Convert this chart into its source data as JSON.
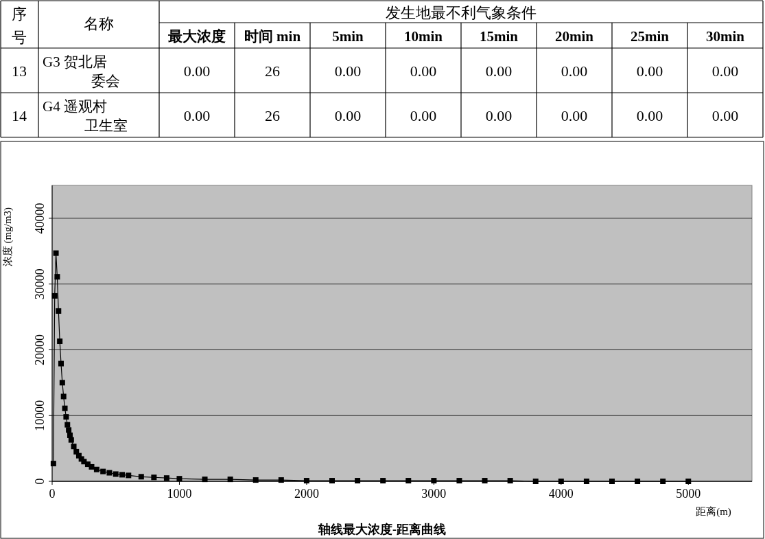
{
  "chart_data": [
    {
      "type": "heatmap",
      "title": "发生地最不利气象条件",
      "annotations": [
        "序号",
        "名称",
        "13",
        "14"
      ],
      "categories": [
        "最大浓度",
        "时间 min",
        "5min",
        "10min",
        "15min",
        "20min",
        "25min",
        "30min"
      ],
      "y_categories": [
        "G3 贺北居委会",
        "G4 遥观村卫生室"
      ],
      "cells": [
        [
          0,
          26,
          0,
          0,
          0,
          0,
          0,
          0
        ],
        [
          0,
          26,
          0,
          0,
          0,
          0,
          0,
          0
        ]
      ],
      "cell_labels": [
        [
          "0.00",
          "26",
          "0.00",
          "0.00",
          "0.00",
          "0.00",
          "0.00",
          "0.00"
        ],
        [
          "0.00",
          "26",
          "0.00",
          "0.00",
          "0.00",
          "0.00",
          "0.00",
          "0.00"
        ]
      ]
    },
    {
      "type": "line",
      "title": "轴线最大浓度-距离曲线",
      "xlabel": "距离(m)",
      "ylabel": "浓度 (mg/m3)",
      "xlim": [
        0,
        5500
      ],
      "xticks": [
        0,
        1000,
        2000,
        3000,
        4000,
        5000
      ],
      "ylim": [
        0,
        45000
      ],
      "yticks": [
        0,
        10000,
        20000,
        30000,
        40000
      ],
      "grid": "y",
      "marker": "square",
      "series": [
        {
          "color": "#000000",
          "x": [
            10,
            20,
            30,
            40,
            50,
            60,
            70,
            80,
            90,
            100,
            110,
            120,
            130,
            140,
            150,
            170,
            190,
            210,
            230,
            250,
            280,
            310,
            350,
            400,
            450,
            500,
            550,
            600,
            700,
            800,
            900,
            1000,
            1200,
            1400,
            1600,
            1800,
            2000,
            2200,
            2400,
            2600,
            2800,
            3000,
            3200,
            3400,
            3600,
            3800,
            4000,
            4200,
            4400,
            4600,
            4800,
            5000
          ],
          "values": [
            2700,
            28200,
            34700,
            31100,
            25900,
            21300,
            17900,
            15000,
            12900,
            11100,
            9800,
            8600,
            7800,
            7000,
            6300,
            5300,
            4500,
            3900,
            3400,
            3000,
            2600,
            2200,
            1800,
            1500,
            1300,
            1100,
            1000,
            900,
            700,
            600,
            500,
            400,
            300,
            300,
            200,
            200,
            100,
            100,
            100,
            100,
            100,
            100,
            100,
            100,
            100,
            0,
            0,
            0,
            0,
            0,
            0,
            0
          ]
        }
      ]
    }
  ]
}
